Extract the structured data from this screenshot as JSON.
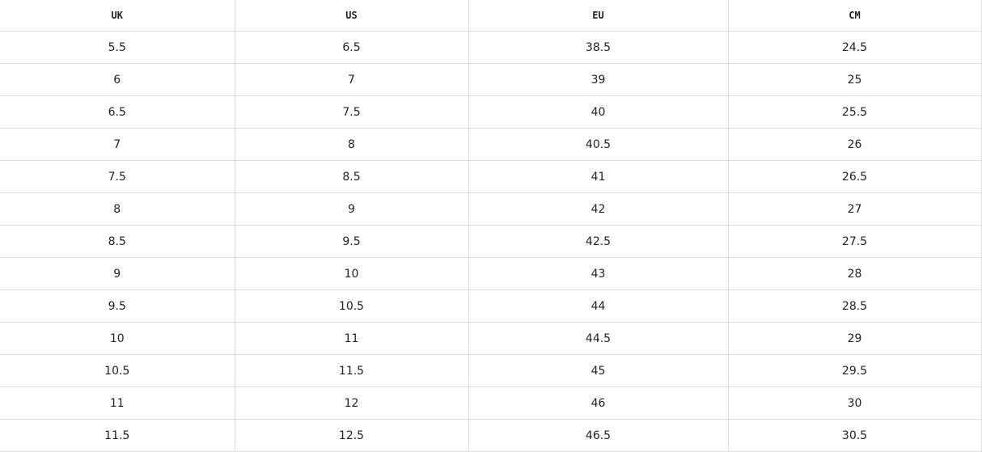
{
  "headers": [
    "UK",
    "US",
    "EU",
    "CM"
  ],
  "rows": [
    [
      "5.5",
      "6.5",
      "38.5",
      "24.5"
    ],
    [
      "6",
      "7",
      "39",
      "25"
    ],
    [
      "6.5",
      "7.5",
      "40",
      "25.5"
    ],
    [
      "7",
      "8",
      "40.5",
      "26"
    ],
    [
      "7.5",
      "8.5",
      "41",
      "26.5"
    ],
    [
      "8",
      "9",
      "42",
      "27"
    ],
    [
      "8.5",
      "9.5",
      "42.5",
      "27.5"
    ],
    [
      "9",
      "10",
      "43",
      "28"
    ],
    [
      "9.5",
      "10.5",
      "44",
      "28.5"
    ],
    [
      "10",
      "11",
      "44.5",
      "29"
    ],
    [
      "10.5",
      "11.5",
      "45",
      "29.5"
    ],
    [
      "11",
      "12",
      "46",
      "30"
    ],
    [
      "11.5",
      "12.5",
      "46.5",
      "30.5"
    ]
  ]
}
